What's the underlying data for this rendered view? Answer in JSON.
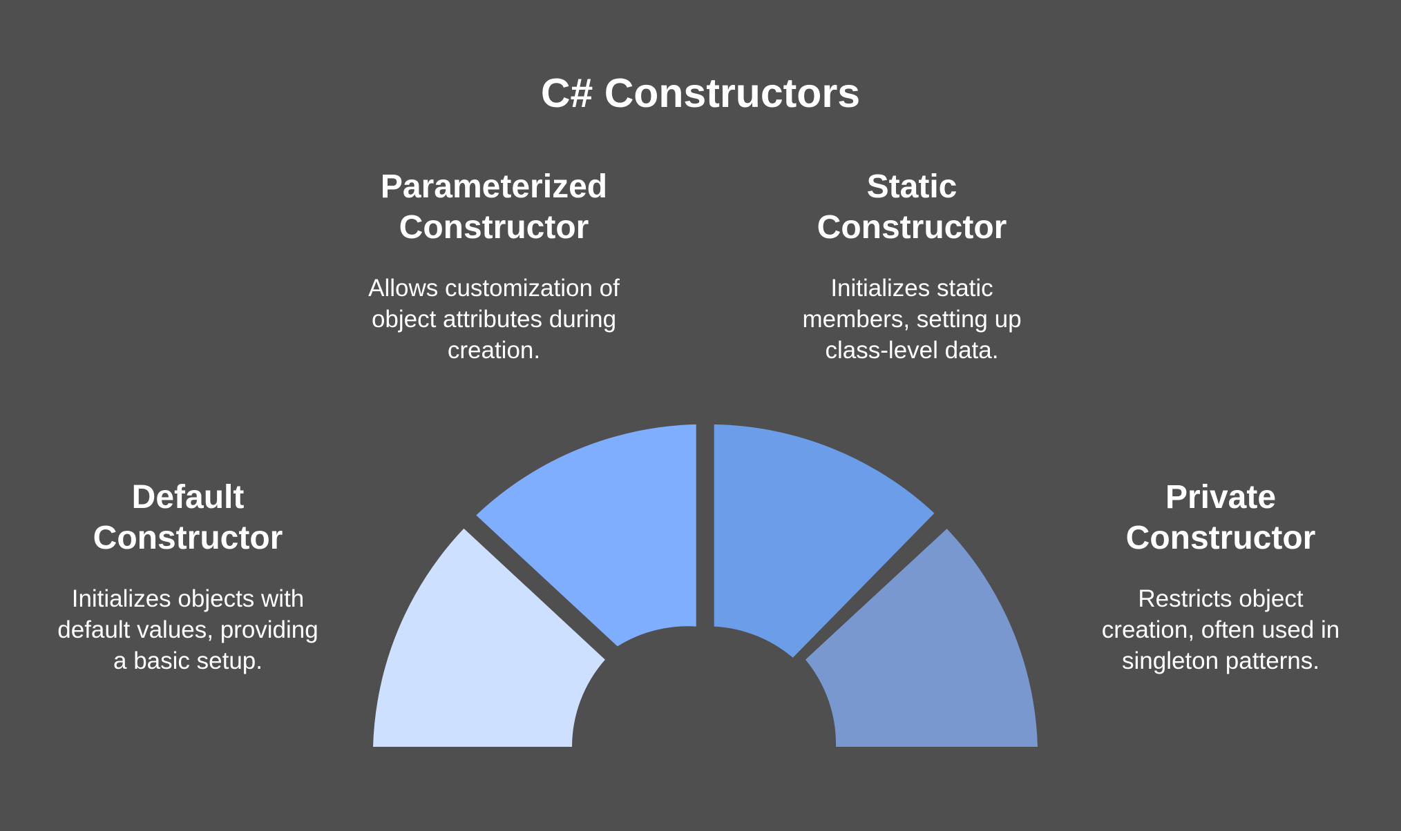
{
  "title": "C# Constructors",
  "segments": [
    {
      "heading_line1": "Default",
      "heading_line2": "Constructor",
      "desc_line1": "Initializes objects with",
      "desc_line2": "default values, providing",
      "desc_line3": "a basic setup.",
      "color": "#cde0ff"
    },
    {
      "heading_line1": "Parameterized",
      "heading_line2": "Constructor",
      "desc_line1": "Allows customization of",
      "desc_line2": "object attributes during",
      "desc_line3": "creation.",
      "color": "#80aeff"
    },
    {
      "heading_line1": "Static",
      "heading_line2": "Constructor",
      "desc_line1": "Initializes static",
      "desc_line2": "members, setting up",
      "desc_line3": "class-level data.",
      "color": "#6b9de9"
    },
    {
      "heading_line1": "Private",
      "heading_line2": "Constructor",
      "desc_line1": "Restricts object",
      "desc_line2": "creation, often used in",
      "desc_line3": "singleton patterns.",
      "color": "#7898cf"
    }
  ]
}
